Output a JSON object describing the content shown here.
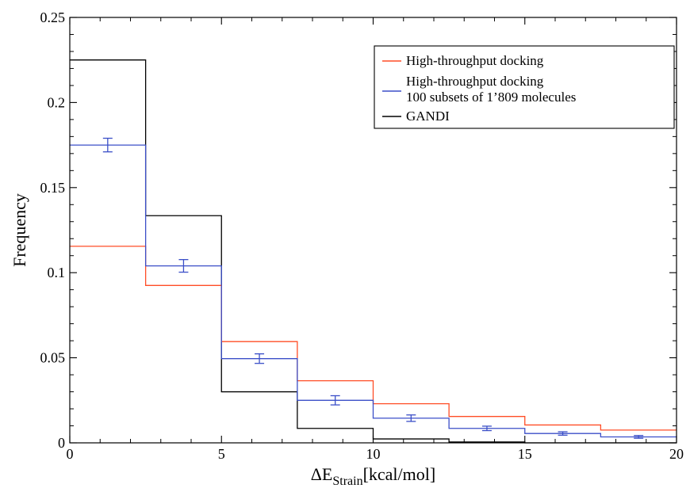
{
  "chart_data": {
    "type": "histogram",
    "title": "",
    "xlabel_main": "ΔE",
    "xlabel_sub": "Strain",
    "xlabel_unit": "[kcal/mol]",
    "ylabel": "Frequency",
    "xlim": [
      0,
      20
    ],
    "ylim": [
      0,
      0.25
    ],
    "x_ticks": [
      0,
      5,
      10,
      15,
      20
    ],
    "x_tick_labels": [
      "0",
      "5",
      "10",
      "15",
      "20"
    ],
    "y_ticks": [
      0,
      0.05,
      0.1,
      0.15,
      0.2,
      0.25
    ],
    "y_tick_labels": [
      "0",
      "0.05",
      "0.1",
      "0.15",
      "0.2",
      "0.25"
    ],
    "bin_edges": [
      0,
      2.5,
      5,
      7.5,
      10,
      12.5,
      15,
      17.5,
      20
    ],
    "grid": false,
    "legend_position": "top-right",
    "series": [
      {
        "name": "GANDI",
        "color": "#000000",
        "values": [
          0.225,
          0.1335,
          0.03,
          0.0085,
          0.0023,
          0.0005,
          0,
          0
        ]
      },
      {
        "name": "High-throughput docking",
        "color": "#ff4d26",
        "values": [
          0.1155,
          0.0925,
          0.0595,
          0.0365,
          0.023,
          0.0155,
          0.0105,
          0.0075
        ]
      },
      {
        "name": "High-throughput docking 100 subsets of 1’809 molecules",
        "name_lines": [
          "High-throughput docking",
          "100 subsets of 1’809 molecules"
        ],
        "color": "#3b4fc8",
        "values": [
          0.175,
          0.104,
          0.0495,
          0.025,
          0.0145,
          0.0085,
          0.0055,
          0.0035
        ],
        "errors": [
          0.004,
          0.0037,
          0.0028,
          0.0027,
          0.0019,
          0.0013,
          0.001,
          0.0008
        ]
      }
    ],
    "legend": [
      {
        "label_lines": [
          "High-throughput docking"
        ],
        "color": "#ff4d26"
      },
      {
        "label_lines": [
          "High-throughput docking",
          "100 subsets of 1’809 molecules"
        ],
        "color": "#3b4fc8"
      },
      {
        "label_lines": [
          "GANDI"
        ],
        "color": "#000000"
      }
    ]
  }
}
